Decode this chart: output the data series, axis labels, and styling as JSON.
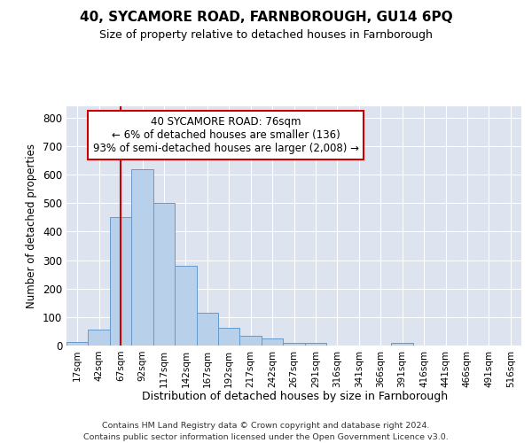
{
  "title": "40, SYCAMORE ROAD, FARNBOROUGH, GU14 6PQ",
  "subtitle": "Size of property relative to detached houses in Farnborough",
  "xlabel": "Distribution of detached houses by size in Farnborough",
  "ylabel": "Number of detached properties",
  "bin_labels": [
    "17sqm",
    "42sqm",
    "67sqm",
    "92sqm",
    "117sqm",
    "142sqm",
    "167sqm",
    "192sqm",
    "217sqm",
    "242sqm",
    "267sqm",
    "291sqm",
    "316sqm",
    "341sqm",
    "366sqm",
    "391sqm",
    "416sqm",
    "441sqm",
    "466sqm",
    "491sqm",
    "516sqm"
  ],
  "bar_values": [
    12,
    55,
    450,
    620,
    500,
    280,
    115,
    62,
    35,
    25,
    10,
    8,
    0,
    0,
    0,
    8,
    0,
    0,
    0,
    0,
    0
  ],
  "bar_color": "#b8d0ea",
  "bar_edge_color": "#6699cc",
  "background_color": "#dde4f0",
  "grid_color": "#ffffff",
  "property_label": "40 SYCAMORE ROAD: 76sqm",
  "annotation_line1": "← 6% of detached houses are smaller (136)",
  "annotation_line2": "93% of semi-detached houses are larger (2,008) →",
  "annotation_box_color": "#cc0000",
  "vline_color": "#cc0000",
  "vline_x_index": 2,
  "ylim": [
    0,
    840
  ],
  "yticks": [
    0,
    100,
    200,
    300,
    400,
    500,
    600,
    700,
    800
  ],
  "footer_line1": "Contains HM Land Registry data © Crown copyright and database right 2024.",
  "footer_line2": "Contains public sector information licensed under the Open Government Licence v3.0."
}
